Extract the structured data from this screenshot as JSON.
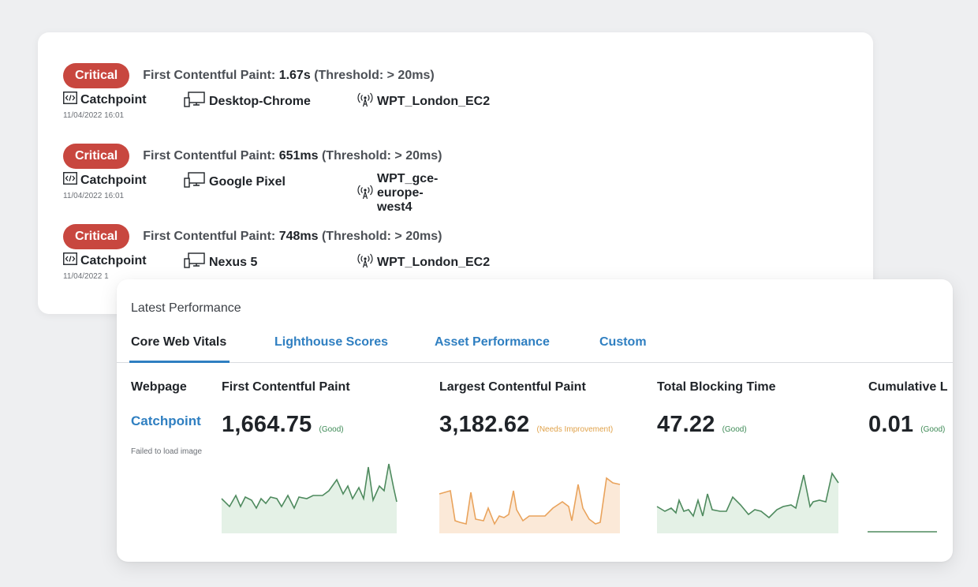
{
  "alerts": [
    {
      "severity": "Critical",
      "metric_label": "First Contentful Paint:",
      "value": "1.67s",
      "threshold": "(Threshold: > 20ms)",
      "source": "Catchpoint",
      "device": "Desktop-Chrome",
      "location": "WPT_London_EC2",
      "timestamp": "11/04/2022 16:01"
    },
    {
      "severity": "Critical",
      "metric_label": "First Contentful Paint:",
      "value": "651ms",
      "threshold": "(Threshold: > 20ms)",
      "source": "Catchpoint",
      "device": "Google Pixel",
      "location": "WPT_gce-europe-west4",
      "timestamp": "11/04/2022 16:01"
    },
    {
      "severity": "Critical",
      "metric_label": "First Contentful Paint:",
      "value": "748ms",
      "threshold": "(Threshold: > 20ms)",
      "source": "Catchpoint",
      "device": "Nexus 5",
      "location": "WPT_London_EC2",
      "timestamp": "11/04/2022 1"
    }
  ],
  "performance": {
    "title": "Latest Performance",
    "tabs": [
      "Core Web Vitals",
      "Lighthouse Scores",
      "Asset Performance",
      "Custom"
    ],
    "active_tab": 0,
    "webpage_header": "Webpage",
    "webpage_link": "Catchpoint",
    "image_error": "Failed to load image",
    "metrics": [
      {
        "name": "First Contentful Paint",
        "value": "1,664.75",
        "status": "(Good)",
        "status_type": "good"
      },
      {
        "name": "Largest Contentful Paint",
        "value": "3,182.62",
        "status": "(Needs Improvement)",
        "status_type": "warn"
      },
      {
        "name": "Total Blocking Time",
        "value": "47.22",
        "status": "(Good)",
        "status_type": "good"
      },
      {
        "name": "Cumulative L",
        "value": "0.01",
        "status": "(Good)",
        "status_type": "good"
      }
    ]
  },
  "colors": {
    "critical": "#c8473f",
    "accent": "#2f7fc1",
    "good_line": "#4e8a5e",
    "good_fill": "#e4f1e6",
    "warn_line": "#e9a35c",
    "warn_fill": "#fbe9d8"
  },
  "icons": {
    "source": "code-icon",
    "device": "desktop-monitor-icon",
    "location": "signal-tower-icon"
  }
}
